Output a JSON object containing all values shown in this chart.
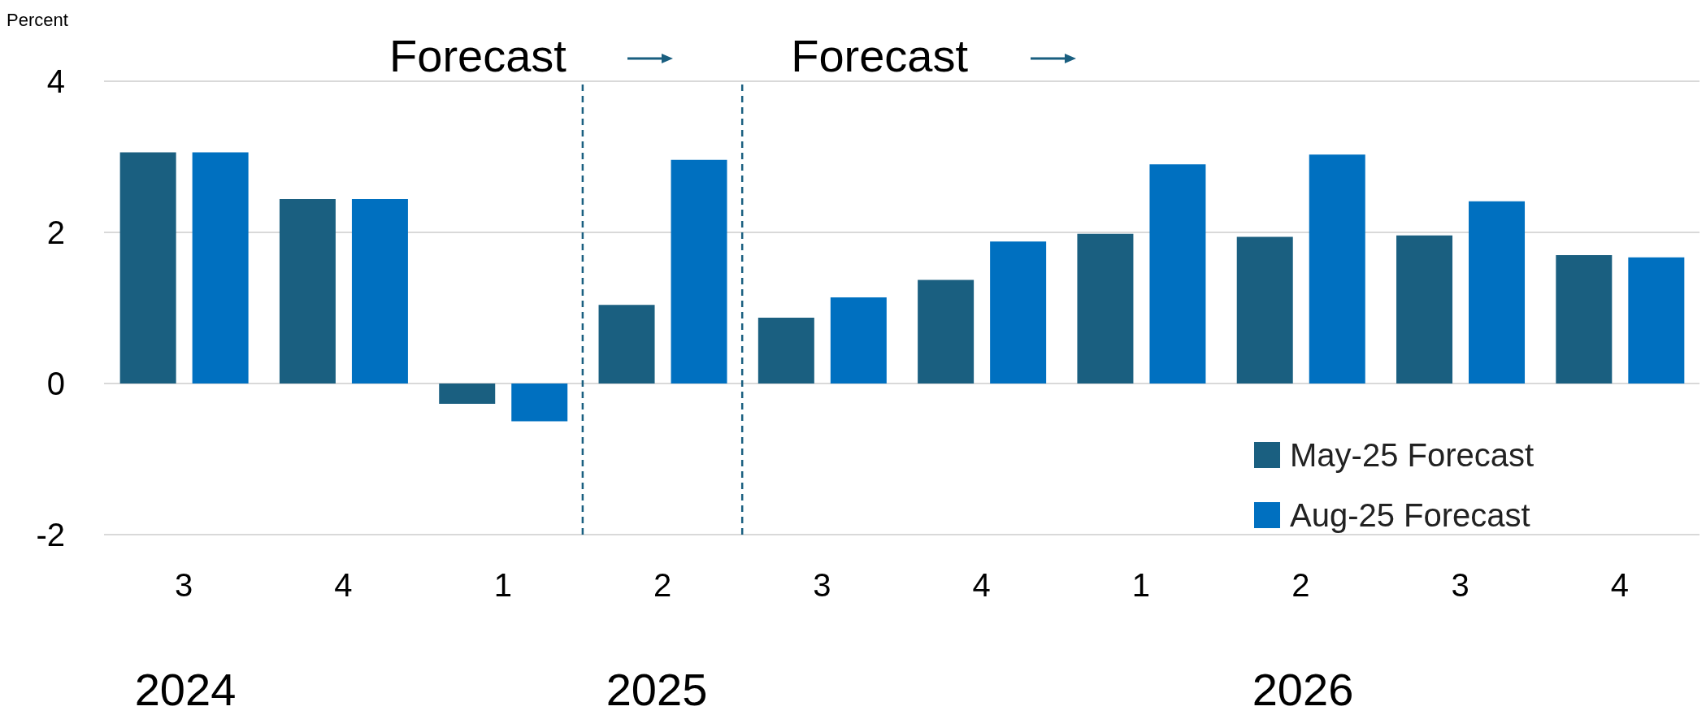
{
  "chart_data": {
    "type": "bar",
    "ylabel": "Percent",
    "categories": [
      "3",
      "4",
      "1",
      "2",
      "3",
      "4",
      "1",
      "2",
      "3",
      "4"
    ],
    "series": [
      {
        "name": "May-25 Forecast",
        "color": "#1a5f80",
        "values": [
          3.06,
          2.44,
          -0.27,
          1.04,
          0.87,
          1.37,
          1.98,
          1.94,
          1.96,
          1.7
        ]
      },
      {
        "name": "Aug-25 Forecast",
        "color": "#0070c0",
        "values": [
          3.06,
          2.44,
          -0.5,
          2.96,
          1.14,
          1.88,
          2.9,
          3.03,
          2.41,
          1.67
        ]
      }
    ],
    "ylim": [
      -2,
      4
    ],
    "yticks": [
      -2,
      0,
      2,
      4
    ],
    "grid": "y",
    "legend": "bottom right",
    "annotations": [
      "Forecast",
      "Forecast",
      "2024",
      "2025",
      "2026"
    ]
  }
}
